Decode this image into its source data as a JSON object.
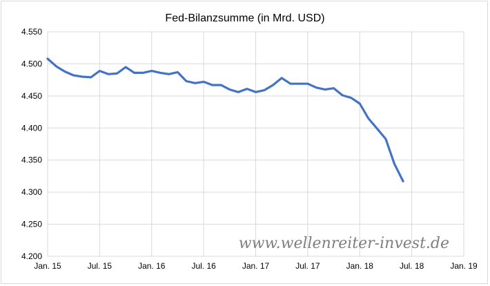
{
  "chart_data": {
    "type": "line",
    "title": "Fed-Bilanzsumme (in Mrd. USD)",
    "xlabel": "",
    "ylabel": "",
    "x_range": [
      "2015-01",
      "2019-01"
    ],
    "ylim": [
      4200,
      4550
    ],
    "y_ticks": [
      4200,
      4250,
      4300,
      4350,
      4400,
      4450,
      4500,
      4550
    ],
    "y_tick_labels": [
      "4.200",
      "4.250",
      "4.300",
      "4.350",
      "4.400",
      "4.450",
      "4.500",
      "4.550"
    ],
    "x_ticks": [
      {
        "label": "Jan. 15",
        "month": "2015-01"
      },
      {
        "label": "Jul. 15",
        "month": "2015-07"
      },
      {
        "label": "Jan. 16",
        "month": "2016-01"
      },
      {
        "label": "Jul. 16",
        "month": "2016-07"
      },
      {
        "label": "Jan. 17",
        "month": "2017-01"
      },
      {
        "label": "Jul. 17",
        "month": "2017-07"
      },
      {
        "label": "Jan. 18",
        "month": "2018-01"
      },
      {
        "label": "Jul. 18",
        "month": "2018-07"
      },
      {
        "label": "Jan. 19",
        "month": "2019-01"
      }
    ],
    "grid": true,
    "line_color": "#4472c4",
    "watermark": "www.wellenreiter-invest.de",
    "series": [
      {
        "x": [
          "2015-01",
          "2015-02",
          "2015-03",
          "2015-04",
          "2015-05",
          "2015-06",
          "2015-07",
          "2015-08",
          "2015-09",
          "2015-10",
          "2015-11",
          "2015-12",
          "2016-01",
          "2016-02",
          "2016-03",
          "2016-04",
          "2016-05",
          "2016-06",
          "2016-07",
          "2016-08",
          "2016-09",
          "2016-10",
          "2016-11",
          "2016-12",
          "2017-01",
          "2017-02",
          "2017-03",
          "2017-04",
          "2017-05",
          "2017-06",
          "2017-07",
          "2017-08",
          "2017-09",
          "2017-10",
          "2017-11",
          "2017-12",
          "2018-01",
          "2018-02",
          "2018-03",
          "2018-04",
          "2018-05",
          "2018-06"
        ],
        "values": [
          4508,
          4496,
          4488,
          4482,
          4480,
          4479,
          4489,
          4484,
          4485,
          4495,
          4486,
          4486,
          4489,
          4486,
          4484,
          4487,
          4473,
          4470,
          4472,
          4467,
          4467,
          4460,
          4456,
          4461,
          4456,
          4459,
          4467,
          4478,
          4469,
          4469,
          4469,
          4463,
          4460,
          4462,
          4451,
          4447,
          4438,
          4415,
          4399,
          4383,
          4344,
          4317
        ]
      }
    ]
  }
}
